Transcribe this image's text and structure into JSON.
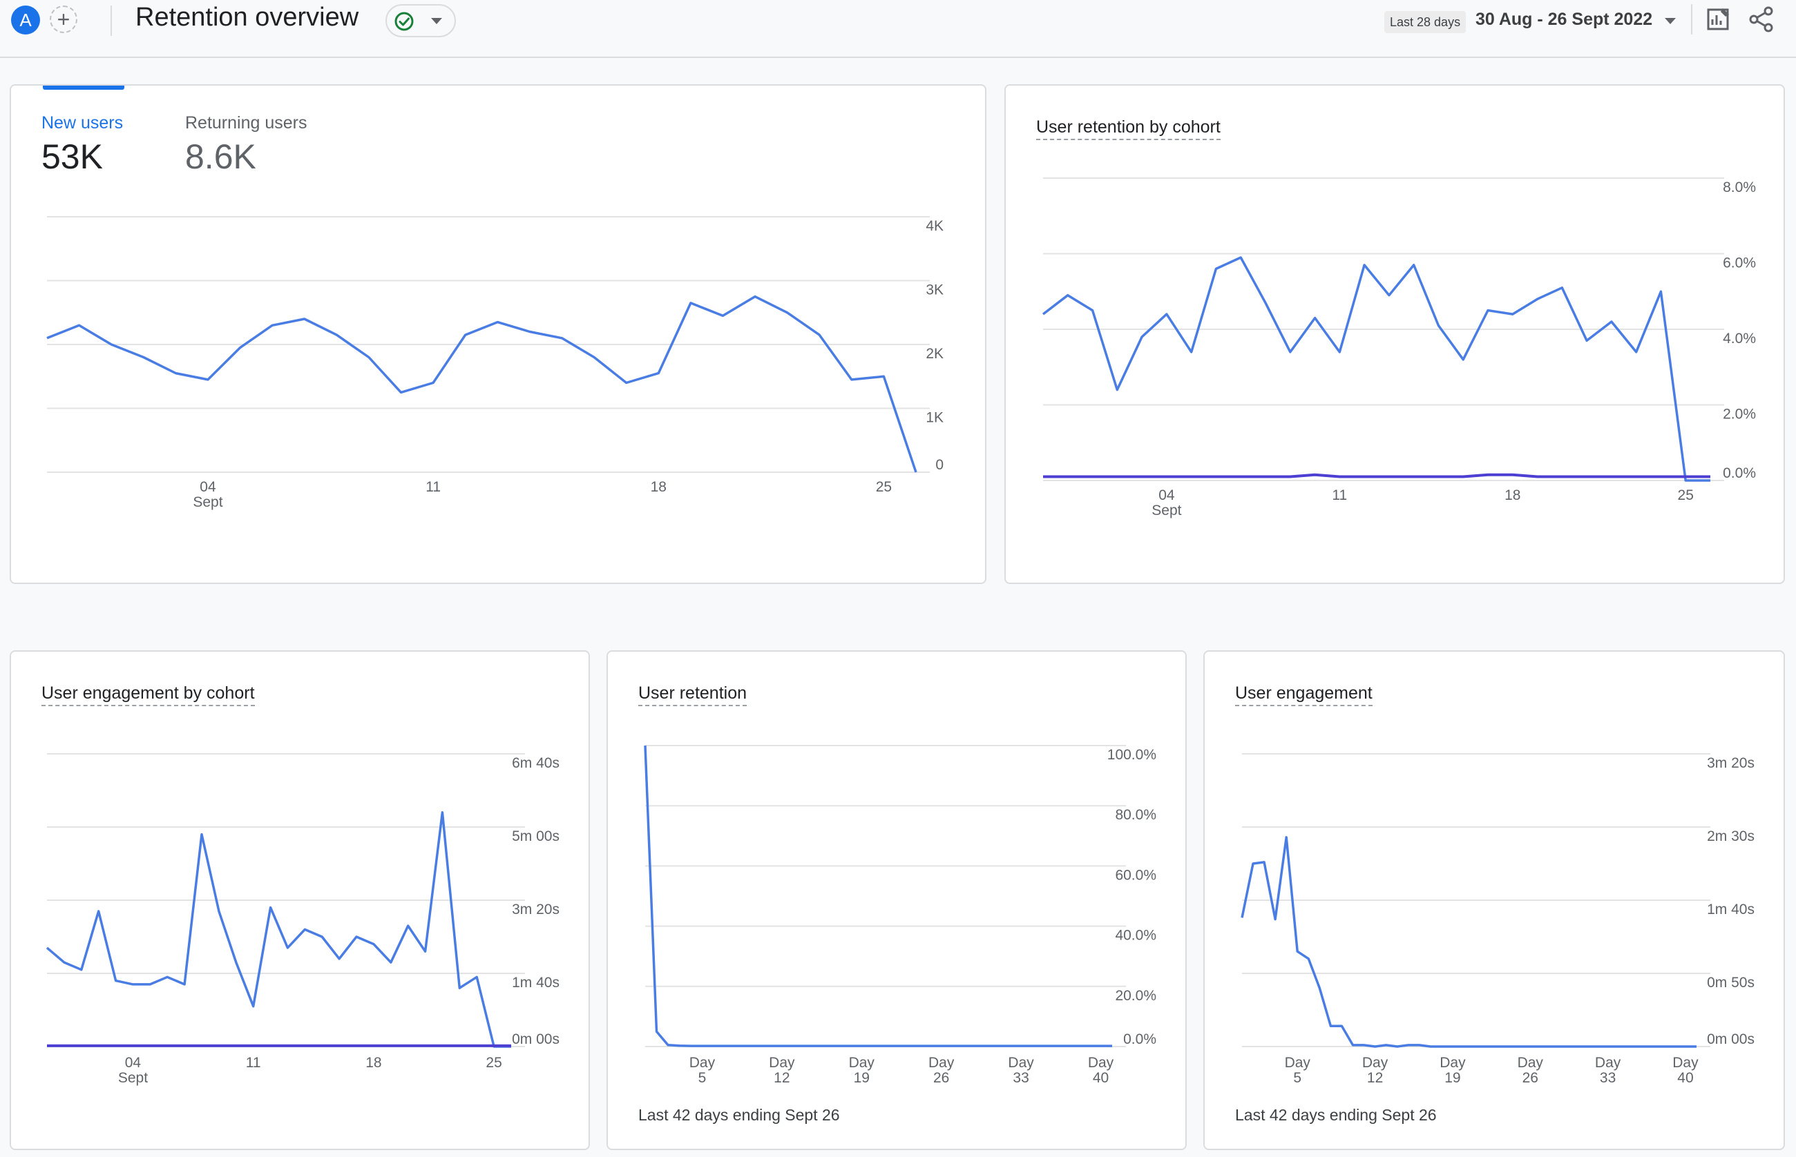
{
  "header": {
    "avatar_letter": "A",
    "add_symbol": "+",
    "title": "Retention overview",
    "status_icon": "check-circle-icon",
    "range_chip": "Last 28 days",
    "date_range": "30 Aug - 26 Sept 2022",
    "icons": [
      "customize-report-icon",
      "share-icon"
    ]
  },
  "colors": {
    "primary_line": "#4a7de3",
    "secondary_line": "#4c3fd1",
    "active_tab": "#1a73e8",
    "grid": "#e3e3e3"
  },
  "users_card": {
    "tabs": [
      {
        "label": "New users",
        "value": "53K",
        "active": true
      },
      {
        "label": "Returning users",
        "value": "8.6K",
        "active": false
      }
    ],
    "chart_data": {
      "type": "line",
      "y_ticks": [
        "4K",
        "3K",
        "2K",
        "1K",
        "0"
      ],
      "ylim": [
        0,
        4000
      ],
      "x_ticks": [
        {
          "label": "04",
          "sub": "Sept",
          "x": 6
        },
        {
          "label": "11",
          "x": 13
        },
        {
          "label": "18",
          "x": 20
        },
        {
          "label": "25",
          "x": 27
        }
      ],
      "x_range": [
        1,
        28
      ],
      "series": [
        {
          "values": [
            2100,
            2300,
            2000,
            1800,
            1550,
            1450,
            1950,
            2300,
            2400,
            2150,
            1800,
            1250,
            1400,
            2150,
            2350,
            2200,
            2100,
            1800,
            1400,
            1550,
            2650,
            2450,
            2750,
            2500,
            2150,
            1450,
            1500,
            0
          ]
        }
      ]
    }
  },
  "retention_cohort_card": {
    "title": "User retention by cohort",
    "chart_data": {
      "type": "line",
      "y_ticks": [
        "8.0%",
        "6.0%",
        "4.0%",
        "2.0%",
        "0.0%"
      ],
      "ylim": [
        0,
        8
      ],
      "x_ticks": [
        {
          "label": "04",
          "sub": "Sept",
          "x": 6
        },
        {
          "label": "11",
          "x": 13
        },
        {
          "label": "18",
          "x": 20
        },
        {
          "label": "25",
          "x": 27
        }
      ],
      "x_range": [
        1,
        28
      ],
      "series": [
        {
          "values": [
            4.4,
            4.9,
            4.5,
            2.4,
            3.8,
            4.4,
            3.4,
            5.6,
            5.9,
            4.7,
            3.4,
            4.3,
            3.4,
            5.7,
            4.9,
            5.7,
            4.1,
            3.2,
            4.5,
            4.4,
            4.8,
            5.1,
            3.7,
            4.2,
            3.4,
            5.0,
            0.0,
            0.0
          ]
        },
        {
          "values": [
            0.1,
            0.1,
            0.1,
            0.1,
            0.1,
            0.1,
            0.1,
            0.1,
            0.1,
            0.1,
            0.1,
            0.15,
            0.1,
            0.1,
            0.1,
            0.1,
            0.1,
            0.1,
            0.15,
            0.15,
            0.1,
            0.1,
            0.1,
            0.1,
            0.1,
            0.1,
            0.1,
            0.1
          ]
        }
      ]
    }
  },
  "engagement_cohort_card": {
    "title": "User engagement by cohort",
    "chart_data": {
      "type": "line",
      "y_ticks": [
        "6m 40s",
        "5m 00s",
        "3m 20s",
        "1m 40s",
        "0m 00s"
      ],
      "ylim": [
        0,
        400
      ],
      "x_ticks": [
        {
          "label": "04",
          "sub": "Sept",
          "x": 6
        },
        {
          "label": "11",
          "x": 13
        },
        {
          "label": "18",
          "x": 20
        },
        {
          "label": "25",
          "x": 27
        }
      ],
      "x_range": [
        1,
        28
      ],
      "series": [
        {
          "values": [
            135,
            115,
            105,
            185,
            90,
            85,
            85,
            95,
            85,
            290,
            185,
            115,
            55,
            190,
            135,
            160,
            150,
            120,
            150,
            140,
            115,
            165,
            130,
            320,
            80,
            95,
            0,
            0
          ]
        },
        {
          "values": [
            1,
            1,
            1,
            1,
            1,
            1,
            1,
            1,
            1,
            1,
            1,
            1,
            1,
            1,
            1,
            1,
            1,
            1,
            1,
            1,
            1,
            1,
            1,
            1,
            1,
            1,
            1,
            1
          ]
        }
      ]
    }
  },
  "retention_card": {
    "title": "User retention",
    "footer": "Last 42 days ending Sept 26",
    "chart_data": {
      "type": "line",
      "y_ticks": [
        "100.0%",
        "80.0%",
        "60.0%",
        "40.0%",
        "20.0%",
        "0.0%"
      ],
      "ylim": [
        0,
        100
      ],
      "x_ticks": [
        {
          "label": "Day",
          "sub": "5",
          "x": 5
        },
        {
          "label": "Day",
          "sub": "12",
          "x": 12
        },
        {
          "label": "Day",
          "sub": "19",
          "x": 19
        },
        {
          "label": "Day",
          "sub": "26",
          "x": 26
        },
        {
          "label": "Day",
          "sub": "33",
          "x": 33
        },
        {
          "label": "Day",
          "sub": "40",
          "x": 40
        }
      ],
      "x_range": [
        0,
        41
      ],
      "series": [
        {
          "values": [
            100,
            5,
            0.5,
            0.3,
            0.2,
            0.2,
            0.2,
            0.2,
            0.2,
            0.2,
            0.2,
            0.2,
            0.2,
            0.2,
            0.2,
            0.2,
            0.2,
            0.2,
            0.2,
            0.2,
            0.2,
            0.2,
            0.2,
            0.2,
            0.2,
            0.2,
            0.2,
            0.2,
            0.2,
            0.2,
            0.2,
            0.2,
            0.2,
            0.2,
            0.2,
            0.2,
            0.2,
            0.2,
            0.2,
            0.2,
            0.2,
            0.2
          ]
        }
      ]
    }
  },
  "engagement_card": {
    "title": "User engagement",
    "footer": "Last 42 days ending Sept 26",
    "chart_data": {
      "type": "line",
      "y_ticks": [
        "3m 20s",
        "2m 30s",
        "1m 40s",
        "0m 50s",
        "0m 00s"
      ],
      "ylim": [
        0,
        200
      ],
      "x_ticks": [
        {
          "label": "Day",
          "sub": "5",
          "x": 5
        },
        {
          "label": "Day",
          "sub": "12",
          "x": 12
        },
        {
          "label": "Day",
          "sub": "19",
          "x": 19
        },
        {
          "label": "Day",
          "sub": "26",
          "x": 26
        },
        {
          "label": "Day",
          "sub": "33",
          "x": 33
        },
        {
          "label": "Day",
          "sub": "40",
          "x": 40
        }
      ],
      "x_range": [
        0,
        41
      ],
      "series": [
        {
          "values": [
            88,
            125,
            126,
            87,
            143,
            65,
            60,
            40,
            14,
            14,
            1,
            1,
            0,
            1,
            0,
            1,
            1,
            0,
            0,
            0,
            0,
            0,
            0,
            0,
            0,
            0,
            0,
            0,
            0,
            0,
            0,
            0,
            0,
            0,
            0,
            0,
            0,
            0,
            0,
            0,
            0,
            0
          ]
        }
      ]
    }
  }
}
